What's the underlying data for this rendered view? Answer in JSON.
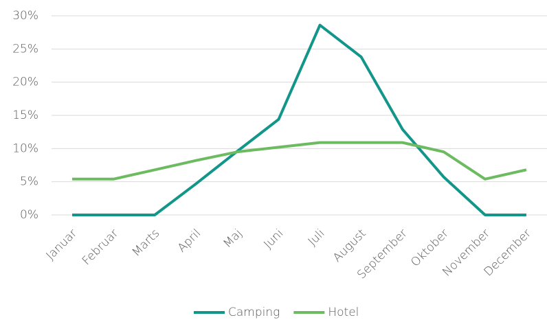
{
  "chart_data": {
    "type": "line",
    "categories": [
      "Januar",
      "Februar",
      "Marts",
      "April",
      "Maj",
      "Juni",
      "Juli",
      "August",
      "September",
      "Oktober",
      "November",
      "December"
    ],
    "series": [
      {
        "name": "Camping",
        "color": "#13968a",
        "values": [
          0,
          0,
          0,
          4.7,
          9.6,
          14.4,
          28.6,
          23.8,
          12.9,
          5.7,
          0,
          0
        ]
      },
      {
        "name": "Hotel",
        "color": "#6dbb60",
        "values": [
          5.4,
          5.4,
          6.8,
          8.2,
          9.5,
          10.2,
          10.9,
          10.9,
          10.9,
          9.5,
          5.4,
          6.8
        ]
      }
    ],
    "ylim": [
      0,
      30
    ],
    "yticks": [
      {
        "value": 0,
        "label": "0%"
      },
      {
        "value": 5,
        "label": "5%"
      },
      {
        "value": 10,
        "label": "10%"
      },
      {
        "value": 15,
        "label": "15%"
      },
      {
        "value": 20,
        "label": "20%"
      },
      {
        "value": 25,
        "label": "25%"
      },
      {
        "value": 30,
        "label": "30%"
      }
    ],
    "grid": true,
    "legend": "bottom"
  }
}
